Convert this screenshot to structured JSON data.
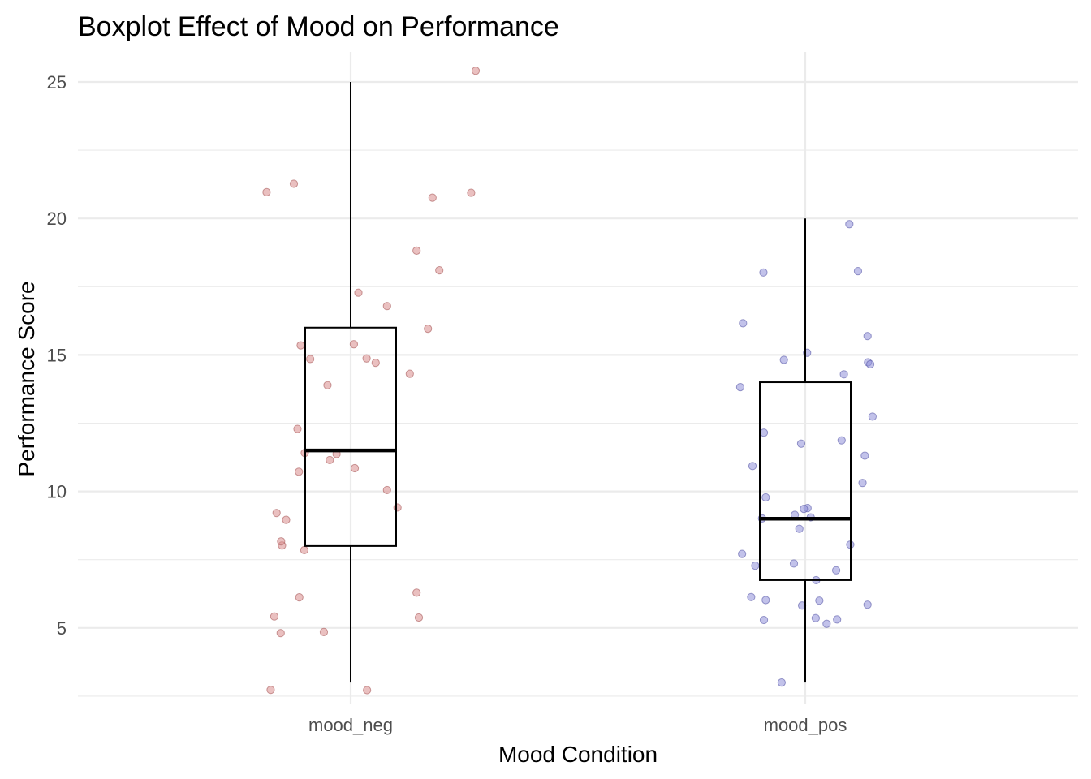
{
  "chart_data": {
    "type": "box",
    "title": "Boxplot Effect of Mood on Performance",
    "xlabel": "Mood Condition",
    "ylabel": "Performance Score",
    "categories": [
      "mood_neg",
      "mood_pos"
    ],
    "ylim": [
      2.2,
      26.1
    ],
    "yticks": [
      5,
      10,
      15,
      20,
      25
    ],
    "grid": true,
    "boxes": [
      {
        "category": "mood_neg",
        "min": 3,
        "q1": 8,
        "median": 11.5,
        "q3": 16,
        "max": 25
      },
      {
        "category": "mood_pos",
        "min": 3,
        "q1": 6.75,
        "median": 9,
        "q3": 14,
        "max": 20
      }
    ],
    "points": [
      {
        "category": "mood_neg",
        "color": "#d98c8c",
        "stroke": "#a85a5a",
        "jitter": [
          -0.185,
          0.275,
          -0.125,
          0.265,
          0.18,
          0.145,
          0.195,
          0.017,
          0.08,
          -0.11,
          0.17,
          -0.089,
          0.007,
          -0.051,
          0.055,
          0.035,
          -0.117,
          0.13,
          0.009,
          -0.031,
          -0.046,
          0.08,
          0.103,
          -0.101,
          -0.114,
          -0.142,
          -0.163,
          -0.151,
          -0.153,
          -0.102,
          0.145,
          -0.113,
          0.15,
          -0.168,
          -0.154,
          -0.059,
          -0.176,
          0.036
        ],
        "y": [
          20.96,
          25.41,
          21.27,
          20.94,
          20.76,
          18.82,
          18.1,
          17.28,
          16.79,
          15.35,
          15.96,
          14.85,
          15.39,
          13.89,
          14.71,
          14.87,
          12.29,
          14.31,
          10.85,
          11.37,
          11.15,
          10.05,
          9.41,
          11.41,
          10.72,
          8.96,
          9.21,
          8.02,
          8.17,
          7.85,
          6.29,
          6.12,
          5.38,
          5.42,
          4.81,
          4.85,
          2.73,
          2.72
        ]
      },
      {
        "category": "mood_pos",
        "color": "#8f8fd9",
        "stroke": "#5a5aa8",
        "jitter": [
          0.097,
          -0.092,
          0.116,
          -0.137,
          0.137,
          0.138,
          0.004,
          0.143,
          0.085,
          -0.091,
          -0.143,
          -0.116,
          -0.047,
          0.148,
          0.08,
          -0.139,
          -0.119,
          0.131,
          -0.087,
          -0.009,
          0.005,
          -0.023,
          -0.013,
          0.012,
          0.099,
          -0.095,
          -0.003,
          0.126,
          0.024,
          0.068,
          -0.11,
          -0.091,
          -0.087,
          0.137,
          0.07,
          0.031,
          -0.052,
          0.047,
          0.023,
          -0.025,
          -0.007
        ],
        "y": [
          19.79,
          18.02,
          18.07,
          16.16,
          15.69,
          14.73,
          15.08,
          14.66,
          14.29,
          12.15,
          13.82,
          10.93,
          14.82,
          12.74,
          11.87,
          7.71,
          6.13,
          11.31,
          9.78,
          11.75,
          9.39,
          9.14,
          8.63,
          9.05,
          8.05,
          9.01,
          9.36,
          10.31,
          6.75,
          7.11,
          7.28,
          5.29,
          6.02,
          5.85,
          5.31,
          6.0,
          3.0,
          5.15,
          5.36,
          7.36,
          5.82
        ]
      }
    ]
  }
}
